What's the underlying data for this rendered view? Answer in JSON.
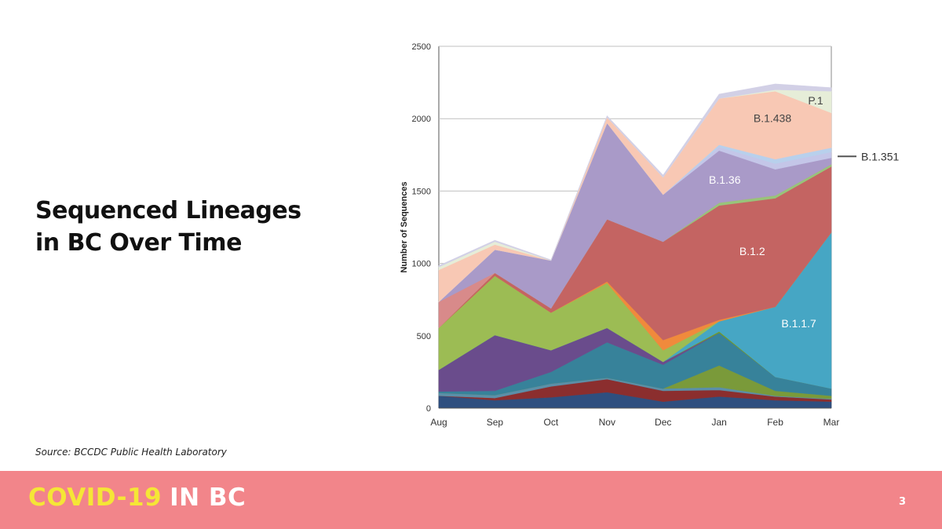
{
  "slide": {
    "title_line1": "Sequenced Lineages",
    "title_line2": "in BC Over Time",
    "source": "Source: BCCDC Public Health Laboratory",
    "page_number": "3"
  },
  "footer": {
    "brand_part1": "COVID-19",
    "brand_part2": "IN BC",
    "brand_color": "#f5e636",
    "background_color": "#f2858a"
  },
  "chart_data": {
    "type": "area",
    "stacked": true,
    "title": "",
    "xlabel": "",
    "ylabel": "Number of Sequences",
    "x": [
      "Aug",
      "Sep",
      "Oct",
      "Nov",
      "Dec",
      "Jan",
      "Feb",
      "Mar"
    ],
    "ylim": [
      0,
      2500
    ],
    "yticks": [
      0,
      500,
      1000,
      1500,
      2000,
      2500
    ],
    "grid": true,
    "series": [
      {
        "name": "",
        "color": "#2f4f7f",
        "values": [
          85,
          55,
          75,
          110,
          45,
          80,
          55,
          45
        ]
      },
      {
        "name": "",
        "color": "#8b2e2e",
        "values": [
          0,
          15,
          75,
          90,
          75,
          45,
          25,
          15
        ]
      },
      {
        "name": "",
        "color": "#5b8fa8",
        "values": [
          20,
          20,
          20,
          10,
          15,
          20,
          5,
          5
        ]
      },
      {
        "name": "",
        "color": "#7a9a3a",
        "values": [
          0,
          0,
          0,
          0,
          0,
          150,
          35,
          20
        ]
      },
      {
        "name": "",
        "color": "#37829a",
        "values": [
          10,
          30,
          80,
          245,
          165,
          225,
          95,
          50
        ]
      },
      {
        "name": "",
        "color": "#6a4c8c",
        "values": [
          150,
          385,
          150,
          100,
          20,
          0,
          0,
          0
        ]
      },
      {
        "name": "",
        "color": "#6e9c2e",
        "values": [
          0,
          0,
          0,
          0,
          0,
          10,
          0,
          0
        ]
      },
      {
        "name": "B.1.1.7",
        "color": "#46a6c4",
        "values": [
          0,
          0,
          0,
          0,
          0,
          70,
          485,
          1080
        ]
      },
      {
        "name": "",
        "color": "#9cbc54",
        "values": [
          290,
          410,
          260,
          310,
          80,
          0,
          0,
          0
        ]
      },
      {
        "name": "",
        "color": "#f08a3c",
        "values": [
          0,
          0,
          0,
          10,
          70,
          10,
          0,
          0
        ]
      },
      {
        "name": "B.1.2",
        "color": "#c46462",
        "values": [
          0,
          20,
          30,
          430,
          680,
          790,
          750,
          455
        ]
      },
      {
        "name": "",
        "color": "#98c47a",
        "values": [
          0,
          0,
          0,
          0,
          0,
          20,
          20,
          15
        ]
      },
      {
        "name": "",
        "color": "#d88a8a",
        "values": [
          180,
          0,
          0,
          0,
          0,
          0,
          0,
          0
        ]
      },
      {
        "name": "B.1.36",
        "color": "#a99ac8",
        "values": [
          0,
          160,
          330,
          665,
          325,
          360,
          180,
          45
        ]
      },
      {
        "name": "B.1.351",
        "color": "#c4c6e8",
        "values": [
          0,
          0,
          0,
          0,
          0,
          25,
          40,
          40
        ]
      },
      {
        "name": "",
        "color": "#b8d0ec",
        "values": [
          0,
          0,
          0,
          0,
          0,
          15,
          30,
          30
        ]
      },
      {
        "name": "B.1.438",
        "color": "#f8c8b4",
        "values": [
          220,
          35,
          0,
          40,
          120,
          320,
          470,
          240
        ]
      },
      {
        "name": "P.1",
        "color": "#e6edd8",
        "values": [
          20,
          20,
          0,
          0,
          0,
          0,
          10,
          150
        ]
      },
      {
        "name": "",
        "color": "#d2d0e6",
        "values": [
          10,
          10,
          5,
          10,
          15,
          30,
          40,
          25
        ]
      }
    ],
    "annotations": [
      {
        "text": "P.1",
        "series": "P.1"
      },
      {
        "text": "B.1.438",
        "series": "B.1.438"
      },
      {
        "text": "B.1.351",
        "series": "B.1.351"
      },
      {
        "text": "B.1.36",
        "series": "B.1.36"
      },
      {
        "text": "B.1.2",
        "series": "B.1.2"
      },
      {
        "text": "B.1.1.7",
        "series": "B.1.1.7"
      }
    ]
  }
}
